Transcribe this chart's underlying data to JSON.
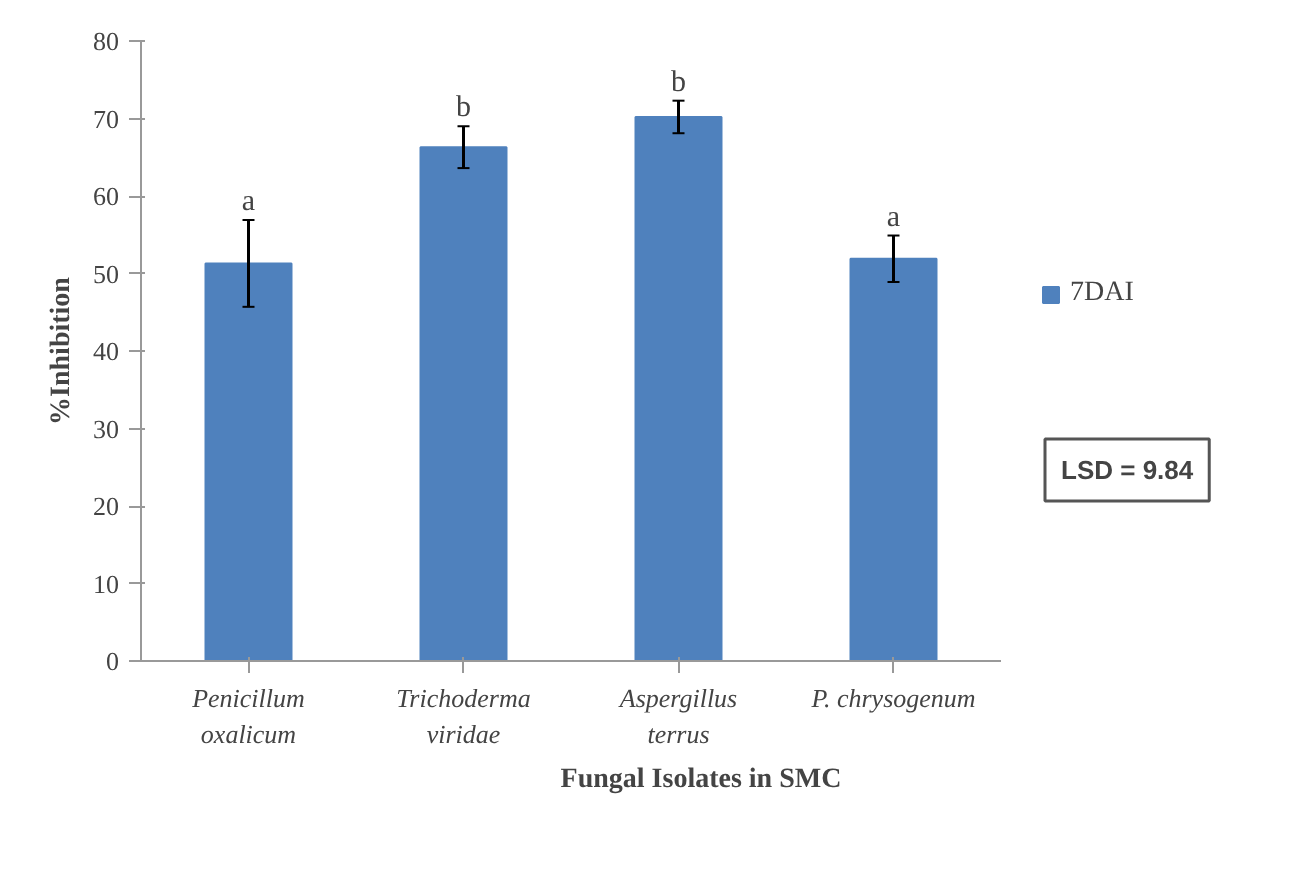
{
  "chart_data": {
    "type": "bar",
    "xlabel": "Fungal Isolates in SMC",
    "ylabel": "%Inhibition",
    "categories": [
      "Penicillum oxalicum",
      "Trichoderma viridae",
      "Aspergillus terrus",
      "P. chrysogenum"
    ],
    "series": [
      {
        "name": "7DAI",
        "color": "#4f81bd",
        "values": [
          51.3,
          66.3,
          70.2,
          51.9
        ],
        "errors": [
          5.6,
          2.7,
          2.1,
          3.0
        ]
      }
    ],
    "ylim": [
      0,
      80
    ],
    "yticks": [
      0,
      10,
      20,
      30,
      40,
      50,
      60,
      70,
      80
    ],
    "grid": false,
    "legend": "right",
    "annotations": [
      {
        "text": "a",
        "x": "Penicillum oxalicum",
        "y": 56.9
      },
      {
        "text": "b",
        "x": "Trichoderma viridae",
        "y": 69
      },
      {
        "text": "b",
        "x": "Aspergillus terrus",
        "y": 72.3
      },
      {
        "text": "a",
        "x": "P. chrysogenum",
        "y": 54.9
      },
      "LSD = 9.84"
    ]
  }
}
